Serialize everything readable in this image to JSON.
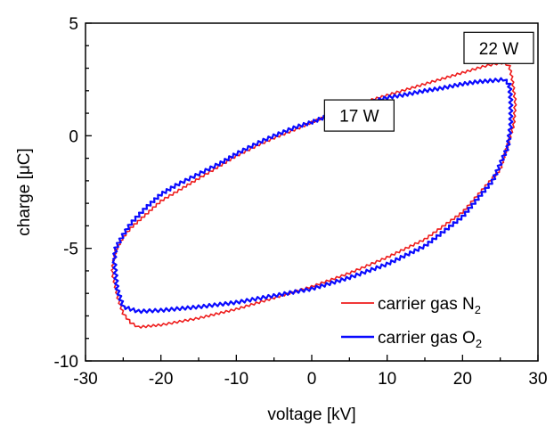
{
  "chart_data": {
    "type": "line",
    "xlabel": "voltage [kV]",
    "ylabel": "charge [μC]",
    "xlim": [
      -30,
      30
    ],
    "ylim": [
      -10,
      5
    ],
    "xticks": [
      "-30",
      "-20",
      "-10",
      "0",
      "10",
      "20",
      "30"
    ],
    "yticks": [
      "5",
      "0",
      "-5",
      "-10"
    ],
    "grid": false,
    "legend_position": "bottom-right",
    "annotations": [
      {
        "text": "22 W",
        "x": 24.8,
        "y": 3.9
      },
      {
        "text": "17 W",
        "x": 6.3,
        "y": 0.9
      }
    ],
    "series": [
      {
        "name": "carrier gas N₂",
        "legend_label": "carrier gas N",
        "legend_subscript": "2",
        "color": "#ee1c1c",
        "x": [
          -26.5,
          -26.0,
          -25.0,
          -24.0,
          -22.0,
          -20.0,
          -17.0,
          -15.0,
          -12.0,
          -10.0,
          -7.0,
          -5.0,
          -2.0,
          0.0,
          3.0,
          5.0,
          8.0,
          10.0,
          12.0,
          15.0,
          17.0,
          19.0,
          21.0,
          23.0,
          24.5,
          25.5,
          26.2,
          26.6,
          27.0,
          26.8,
          25.0,
          20.0,
          15.0,
          10.0,
          5.0,
          0.0,
          -5.0,
          -10.0,
          -15.0,
          -20.0,
          -23.0,
          -24.0,
          -25.0,
          -25.7,
          -26.5
        ],
        "y": [
          -6.0,
          -5.1,
          -4.5,
          -4.1,
          -3.5,
          -2.9,
          -2.3,
          -1.9,
          -1.3,
          -0.9,
          -0.4,
          -0.1,
          0.3,
          0.6,
          1.0,
          1.3,
          1.6,
          1.8,
          2.0,
          2.3,
          2.5,
          2.7,
          2.9,
          3.1,
          3.2,
          3.25,
          3.1,
          2.5,
          1.5,
          0.5,
          -1.5,
          -3.4,
          -4.6,
          -5.4,
          -6.1,
          -6.7,
          -7.2,
          -7.7,
          -8.1,
          -8.4,
          -8.5,
          -8.3,
          -7.9,
          -7.2,
          -6.0
        ]
      },
      {
        "name": "carrier gas O₂",
        "legend_label": "carrier gas O",
        "legend_subscript": "2",
        "color": "#0a0aff",
        "x": [
          -26.2,
          -26.0,
          -25.0,
          -24.0,
          -22.0,
          -20.0,
          -18.0,
          -15.0,
          -12.0,
          -10.0,
          -7.0,
          -5.0,
          -2.0,
          0.0,
          3.0,
          5.0,
          8.0,
          10.0,
          12.0,
          15.0,
          17.0,
          20.0,
          22.0,
          24.0,
          25.5,
          26.2,
          26.4,
          26.4,
          26.0,
          24.0,
          20.0,
          15.0,
          10.0,
          5.0,
          0.0,
          -5.0,
          -10.0,
          -15.0,
          -20.0,
          -23.0,
          -25.0,
          -25.8,
          -26.2
        ],
        "y": [
          -5.5,
          -5.0,
          -4.4,
          -3.9,
          -3.2,
          -2.6,
          -2.2,
          -1.7,
          -1.2,
          -0.8,
          -0.3,
          0.0,
          0.4,
          0.6,
          1.0,
          1.2,
          1.5,
          1.7,
          1.8,
          2.0,
          2.1,
          2.3,
          2.4,
          2.45,
          2.5,
          2.3,
          1.6,
          0.5,
          -0.5,
          -2.0,
          -3.6,
          -4.9,
          -5.7,
          -6.3,
          -6.8,
          -7.1,
          -7.4,
          -7.6,
          -7.75,
          -7.8,
          -7.6,
          -6.8,
          -5.5
        ]
      }
    ]
  }
}
